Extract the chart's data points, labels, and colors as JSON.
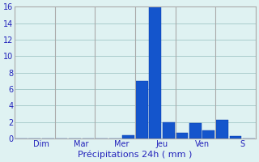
{
  "xlabel": "Précipitations 24h ( mm )",
  "background_color": "#dff2f2",
  "bar_color": "#1455cc",
  "bar_edge_color": "#0033aa",
  "ylim": [
    0,
    16
  ],
  "yticks": [
    0,
    2,
    4,
    6,
    8,
    10,
    12,
    14,
    16
  ],
  "day_labels": [
    "Dim",
    "Mar",
    "Mer",
    "Jeu",
    "Ven",
    "S"
  ],
  "bar_values": [
    0,
    0,
    0,
    0,
    0,
    0,
    0,
    0,
    0.4,
    7.0,
    16.0,
    2.0,
    0.7,
    1.9,
    1.0,
    2.3,
    0.3,
    0
  ],
  "grid_color": "#aacccc",
  "tick_label_color": "#2222bb",
  "xlabel_color": "#2222bb",
  "xlabel_fontsize": 8,
  "tick_fontsize": 7,
  "spine_color": "#aaaaaa"
}
